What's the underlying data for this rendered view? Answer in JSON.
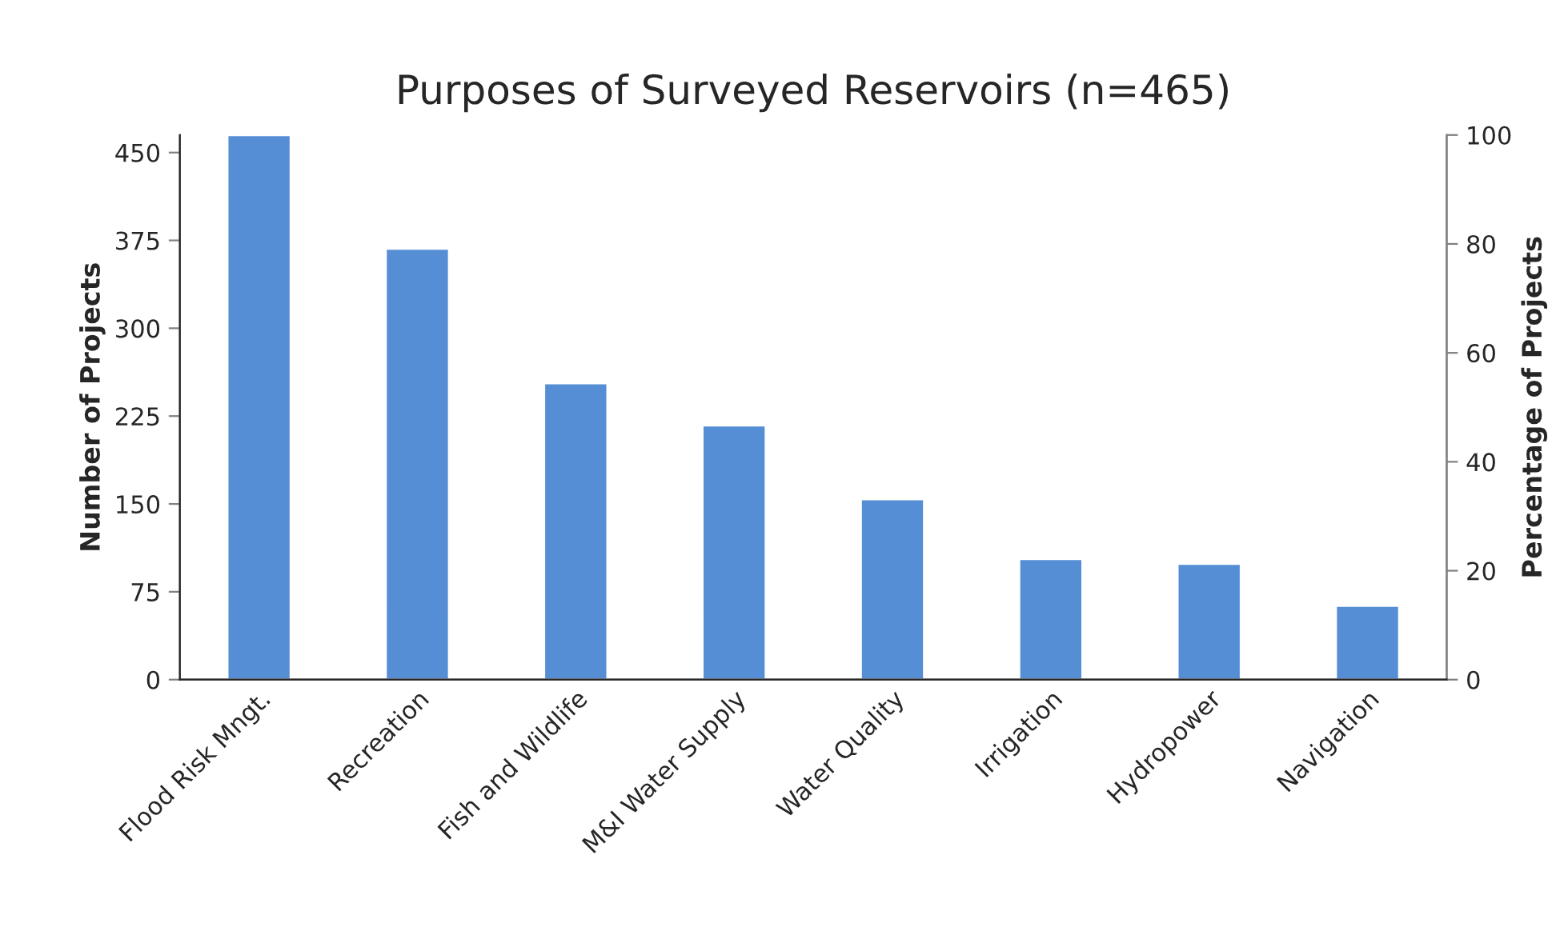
{
  "chart_data": {
    "type": "bar",
    "title": "Purposes of Surveyed Reservoirs (n=465)",
    "categories": [
      "Flood Risk Mngt.",
      "Recreation",
      "Fish and Wildlife",
      "M&I Water Supply",
      "Water Quality",
      "Irrigation",
      "Hydropower",
      "Navigation"
    ],
    "values": [
      465,
      368,
      253,
      217,
      154,
      103,
      99,
      63
    ],
    "color": "#558ed5",
    "ylabel": "Number of Projects",
    "y2label": "Percentage of Projects",
    "ylim": [
      0,
      465
    ],
    "yticks": [
      0,
      75,
      150,
      225,
      300,
      375,
      450
    ],
    "y2lim": [
      0,
      100
    ],
    "y2ticks": [
      0,
      20,
      40,
      60,
      80,
      100
    ],
    "grid": false,
    "legend": false
  }
}
